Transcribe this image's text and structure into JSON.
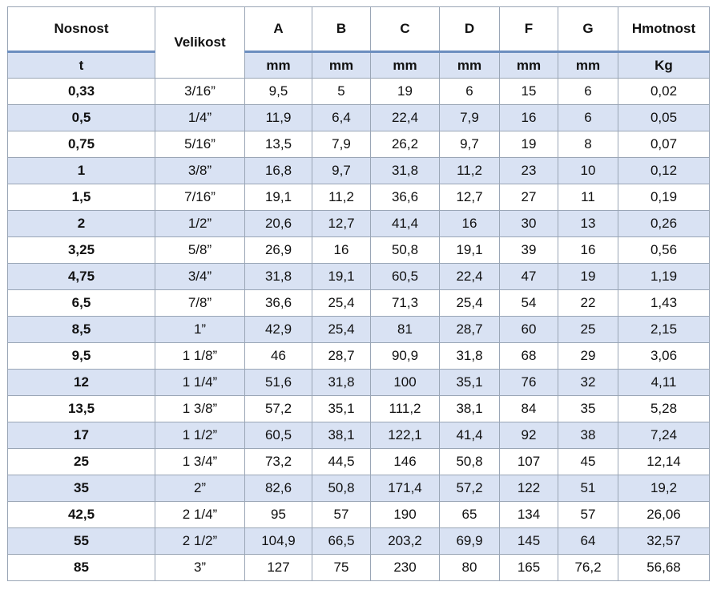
{
  "header": {
    "load": "Nosnost",
    "size": "Velikost",
    "cols": [
      "A",
      "B",
      "C",
      "D",
      "F",
      "G"
    ],
    "weight": "Hmotnost"
  },
  "units": {
    "load": "t",
    "cols": [
      "mm",
      "mm",
      "mm",
      "mm",
      "mm",
      "mm"
    ],
    "weight": "Kg"
  },
  "rows": [
    [
      "0,33",
      "3/16”",
      "9,5",
      "5",
      "19",
      "6",
      "15",
      "6",
      "0,02"
    ],
    [
      "0,5",
      "1/4”",
      "11,9",
      "6,4",
      "22,4",
      "7,9",
      "16",
      "6",
      "0,05"
    ],
    [
      "0,75",
      "5/16”",
      "13,5",
      "7,9",
      "26,2",
      "9,7",
      "19",
      "8",
      "0,07"
    ],
    [
      "1",
      "3/8”",
      "16,8",
      "9,7",
      "31,8",
      "11,2",
      "23",
      "10",
      "0,12"
    ],
    [
      "1,5",
      "7/16”",
      "19,1",
      "11,2",
      "36,6",
      "12,7",
      "27",
      "11",
      "0,19"
    ],
    [
      "2",
      "1/2”",
      "20,6",
      "12,7",
      "41,4",
      "16",
      "30",
      "13",
      "0,26"
    ],
    [
      "3,25",
      "5/8”",
      "26,9",
      "16",
      "50,8",
      "19,1",
      "39",
      "16",
      "0,56"
    ],
    [
      "4,75",
      "3/4”",
      "31,8",
      "19,1",
      "60,5",
      "22,4",
      "47",
      "19",
      "1,19"
    ],
    [
      "6,5",
      "7/8”",
      "36,6",
      "25,4",
      "71,3",
      "25,4",
      "54",
      "22",
      "1,43"
    ],
    [
      "8,5",
      "1”",
      "42,9",
      "25,4",
      "81",
      "28,7",
      "60",
      "25",
      "2,15"
    ],
    [
      "9,5",
      "1 1/8”",
      "46",
      "28,7",
      "90,9",
      "31,8",
      "68",
      "29",
      "3,06"
    ],
    [
      "12",
      "1 1/4”",
      "51,6",
      "31,8",
      "100",
      "35,1",
      "76",
      "32",
      "4,11"
    ],
    [
      "13,5",
      "1 3/8”",
      "57,2",
      "35,1",
      "111,2",
      "38,1",
      "84",
      "35",
      "5,28"
    ],
    [
      "17",
      "1 1/2”",
      "60,5",
      "38,1",
      "122,1",
      "41,4",
      "92",
      "38",
      "7,24"
    ],
    [
      "25",
      "1 3/4”",
      "73,2",
      "44,5",
      "146",
      "50,8",
      "107",
      "45",
      "12,14"
    ],
    [
      "35",
      "2”",
      "82,6",
      "50,8",
      "171,4",
      "57,2",
      "122",
      "51",
      "19,2"
    ],
    [
      "42,5",
      "2 1/4”",
      "95",
      "57",
      "190",
      "65",
      "134",
      "57",
      "26,06"
    ],
    [
      "55",
      "2 1/2”",
      "104,9",
      "66,5",
      "203,2",
      "69,9",
      "145",
      "64",
      "32,57"
    ],
    [
      "85",
      "3”",
      "127",
      "75",
      "230",
      "80",
      "165",
      "76,2",
      "56,68"
    ]
  ]
}
